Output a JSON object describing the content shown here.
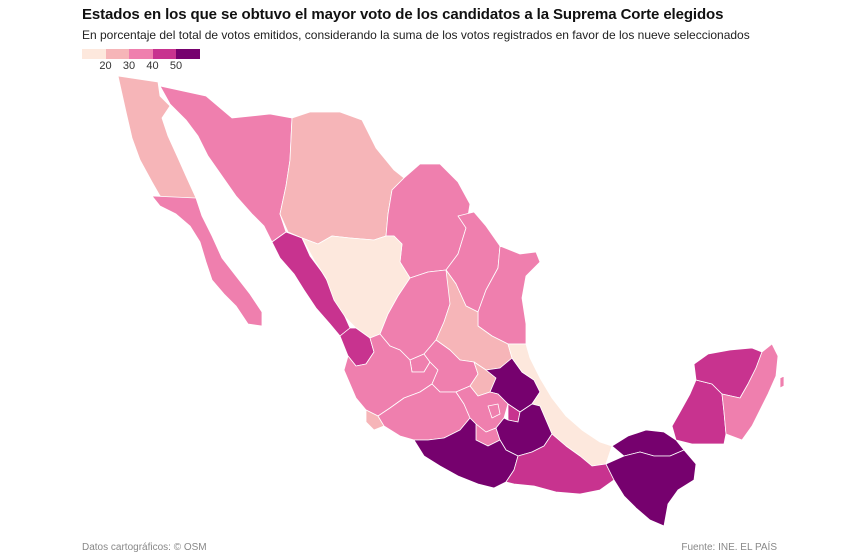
{
  "title": "Estados en los que se obtuvo el mayor voto de los candidatos a la Suprema Corte elegidos",
  "subtitle": "En porcentaje del total de votos emitidos, considerando la suma de los votos registrados en favor de los nueve seleccionados",
  "legend": {
    "ticks": [
      "20",
      "30",
      "40",
      "50"
    ],
    "colors": [
      "#fde8dd",
      "#f6b5b8",
      "#ef7fae",
      "#c8338f",
      "#76016e"
    ]
  },
  "source": "Fuente: INE. EL PAÍS",
  "map_credit": "Datos cartográficos: © OSM",
  "regions": [
    {
      "name": "Baja California",
      "class": 1
    },
    {
      "name": "Baja California Sur",
      "class": 2
    },
    {
      "name": "Sonora",
      "class": 2
    },
    {
      "name": "Chihuahua",
      "class": 1
    },
    {
      "name": "Coahuila",
      "class": 2
    },
    {
      "name": "Nuevo León",
      "class": 2
    },
    {
      "name": "Tamaulipas",
      "class": 2
    },
    {
      "name": "Sinaloa",
      "class": 3
    },
    {
      "name": "Durango",
      "class": 0
    },
    {
      "name": "Zacatecas",
      "class": 2
    },
    {
      "name": "San Luis Potosí",
      "class": 1
    },
    {
      "name": "Nayarit",
      "class": 3
    },
    {
      "name": "Aguascalientes",
      "class": 2
    },
    {
      "name": "Jalisco",
      "class": 2
    },
    {
      "name": "Guanajuato",
      "class": 2
    },
    {
      "name": "Querétaro",
      "class": 1
    },
    {
      "name": "Hidalgo",
      "class": 4
    },
    {
      "name": "Veracruz",
      "class": 0
    },
    {
      "name": "Colima",
      "class": 1
    },
    {
      "name": "Michoacán",
      "class": 2
    },
    {
      "name": "Estado de México",
      "class": 2
    },
    {
      "name": "Ciudad de México",
      "class": 2
    },
    {
      "name": "Morelos",
      "class": 2
    },
    {
      "name": "Tlaxcala",
      "class": 3
    },
    {
      "name": "Puebla",
      "class": 4
    },
    {
      "name": "Guerrero",
      "class": 4
    },
    {
      "name": "Oaxaca",
      "class": 3
    },
    {
      "name": "Chiapas",
      "class": 4
    },
    {
      "name": "Tabasco",
      "class": 4
    },
    {
      "name": "Campeche",
      "class": 3
    },
    {
      "name": "Yucatán",
      "class": 3
    },
    {
      "name": "Quintana Roo",
      "class": 2
    }
  ]
}
